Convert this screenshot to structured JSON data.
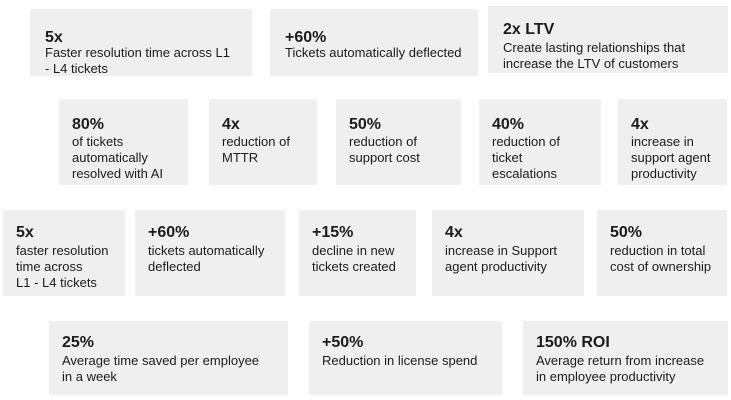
{
  "cards": [
    {
      "stat": "5x",
      "desc": "Faster resolution time across L1\n- L4 tickets"
    },
    {
      "stat": "+60%",
      "desc": "Tickets automatically deflected"
    },
    {
      "stat": "2x LTV",
      "desc": "Create lasting relationships that\nincrease the LTV of customers"
    },
    {
      "stat": "80%",
      "desc": "of tickets\nautomatically\nresolved with AI"
    },
    {
      "stat": "4x",
      "desc": "reduction of\nMTTR"
    },
    {
      "stat": "50%",
      "desc": "reduction of\nsupport cost"
    },
    {
      "stat": "40%",
      "desc": "reduction of\nticket\nescalations"
    },
    {
      "stat": "4x",
      "desc": "increase in\nsupport agent\nproductivity"
    },
    {
      "stat": "5x",
      "desc": "faster resolution\ntime across\nL1 - L4 tickets"
    },
    {
      "stat": "+60%",
      "desc": "tickets automatically\ndeflected"
    },
    {
      "stat": "+15%",
      "desc": "decline in new\ntickets created"
    },
    {
      "stat": "4x",
      "desc": "increase in Support\nagent productivity"
    },
    {
      "stat": "50%",
      "desc": "reduction in total\ncost of ownership"
    },
    {
      "stat": "25%",
      "desc": "Average time saved per employee\nin a week"
    },
    {
      "stat": "+50%",
      "desc": "Reduction in license spend"
    },
    {
      "stat": "150% ROI",
      "desc": "Average return from increase\nin employee productivity"
    }
  ]
}
